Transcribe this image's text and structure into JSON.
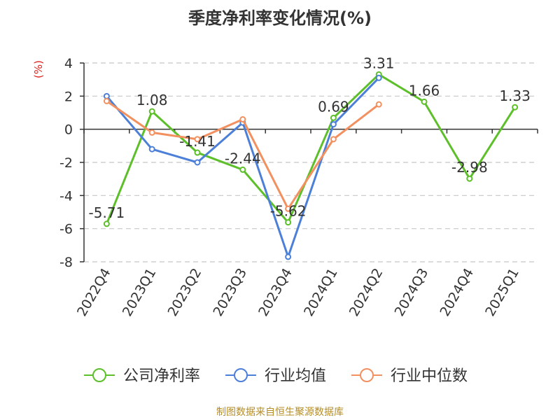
{
  "chart_data": {
    "type": "line",
    "title": "季度净利率变化情况(%)",
    "unit_label": "(%)",
    "categories": [
      "2022Q4",
      "2023Q1",
      "2023Q2",
      "2023Q3",
      "2023Q4",
      "2024Q1",
      "2024Q2",
      "2024Q3",
      "2024Q4",
      "2025Q1"
    ],
    "ylim": [
      -8,
      4
    ],
    "yticks": [
      -8,
      -6,
      -4,
      -2,
      0,
      2,
      4
    ],
    "grid": true,
    "legend_position": "bottom",
    "series": [
      {
        "name": "公司净利率",
        "color": "#5dbf2a",
        "show_labels": true,
        "values": [
          -5.71,
          1.08,
          -1.41,
          -2.44,
          -5.62,
          0.69,
          3.31,
          1.66,
          -2.98,
          1.33
        ]
      },
      {
        "name": "行业均值",
        "color": "#4c7fd8",
        "show_labels": false,
        "values": [
          2.0,
          -1.2,
          -2.0,
          0.4,
          -7.7,
          0.3,
          3.1,
          null,
          null,
          null
        ]
      },
      {
        "name": "行业中位数",
        "color": "#f39060",
        "show_labels": false,
        "values": [
          1.7,
          -0.2,
          -0.6,
          0.6,
          -4.8,
          -0.6,
          1.5,
          null,
          null,
          null
        ]
      }
    ]
  },
  "source": "制图数据来自恒生聚源数据库"
}
